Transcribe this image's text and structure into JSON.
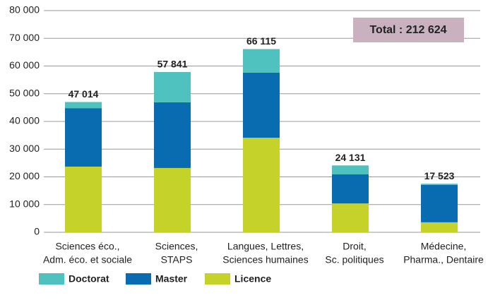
{
  "chart_data": {
    "type": "stacked-bar",
    "categories": [
      [
        "Sciences éco.,",
        "Adm. éco. et sociale"
      ],
      [
        "Sciences,",
        "STAPS"
      ],
      [
        "Langues, Lettres,",
        "Sciences humaines"
      ],
      [
        "Droit,",
        "Sc. politiques"
      ],
      [
        "Médecine,",
        "Pharma., Dentaire"
      ]
    ],
    "series": [
      {
        "name": "Licence",
        "color": "#c4d22a",
        "values": [
          23700,
          23200,
          34100,
          10400,
          3600
        ]
      },
      {
        "name": "Master",
        "color": "#0a6cb0",
        "values": [
          21100,
          23700,
          23500,
          10500,
          13500
        ]
      },
      {
        "name": "Doctorat",
        "color": "#4fc1bf",
        "values": [
          2214,
          10941,
          8515,
          3231,
          423
        ]
      }
    ],
    "total_labels": [
      "47 014",
      "57 841",
      "66 115",
      "24 131",
      "17 523"
    ],
    "annotation": "Total : 212 624",
    "ylim": [
      0,
      80000
    ],
    "yticks": [
      0,
      {
        "value": 10000,
        "label": "10 000"
      },
      {
        "value": 20000,
        "label": "20 000"
      },
      {
        "value": 30000,
        "label": "30 000"
      },
      {
        "value": 40000,
        "label": "40 000"
      },
      {
        "value": 50000,
        "label": "50 000"
      },
      {
        "value": 60000,
        "label": "60 000"
      },
      {
        "value": 70000,
        "label": "70 000"
      },
      {
        "value": 80000,
        "label": "80 000"
      }
    ],
    "grid": true,
    "legend_order": [
      2,
      1,
      0
    ]
  }
}
